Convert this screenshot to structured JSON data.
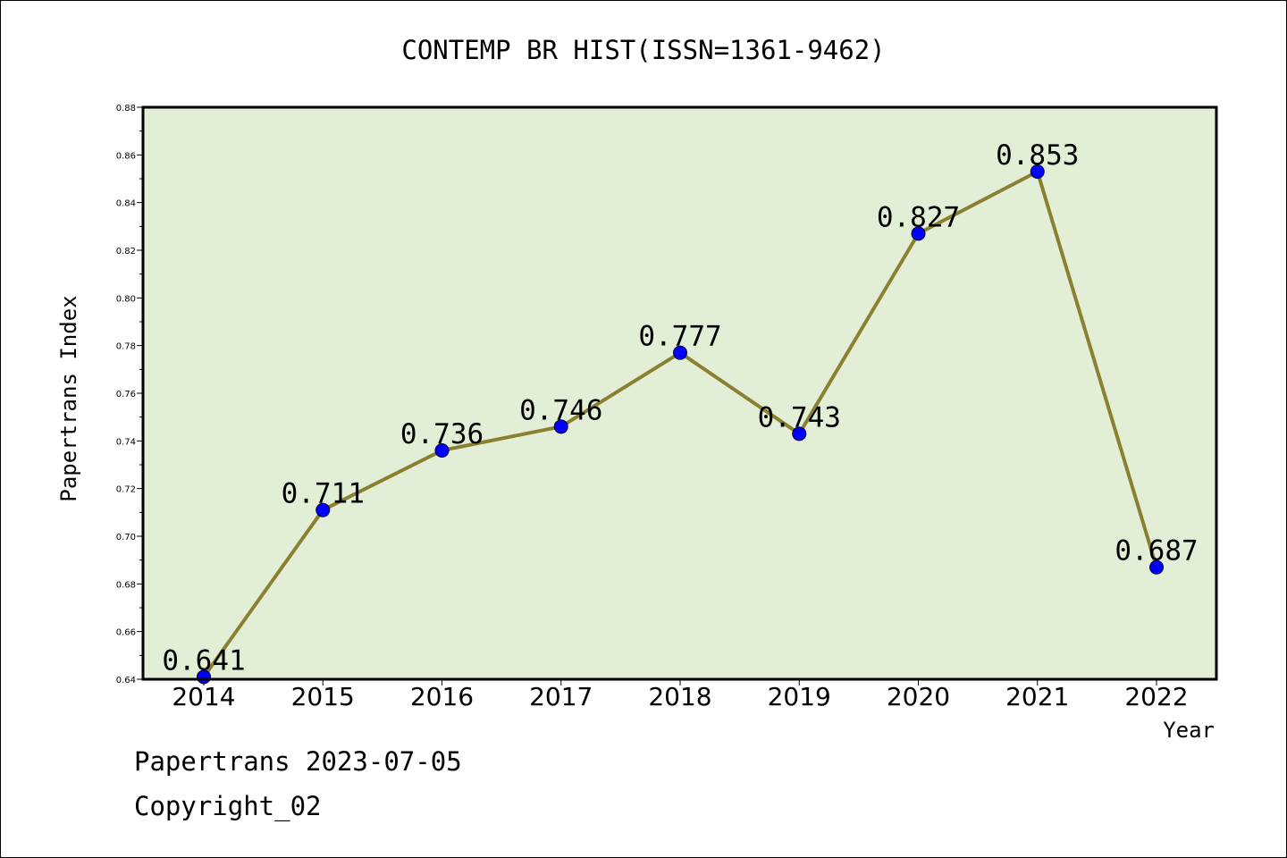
{
  "chart_data": {
    "type": "line",
    "title": "CONTEMP BR HIST(ISSN=1361-9462)",
    "xlabel": "Year",
    "ylabel": "Papertrans Index",
    "categories": [
      "2014",
      "2015",
      "2016",
      "2017",
      "2018",
      "2019",
      "2020",
      "2021",
      "2022"
    ],
    "series": [
      {
        "values": [
          0.641,
          0.711,
          0.736,
          0.746,
          0.777,
          0.743,
          0.827,
          0.853,
          0.687
        ],
        "labels": [
          "0.641",
          "0.711",
          "0.736",
          "0.746",
          "0.777",
          "0.743",
          "0.827",
          "0.853",
          "0.687"
        ]
      }
    ],
    "ylim": [
      0.64,
      0.88
    ],
    "yticks": [
      "0.64",
      "0.66",
      "0.68",
      "0.70",
      "0.72",
      "0.74",
      "0.76",
      "0.78",
      "0.80",
      "0.82",
      "0.84",
      "0.86",
      "0.88"
    ],
    "grid": false,
    "colors": {
      "plot_background": "#e2efd6",
      "line": "#8b8032",
      "marker": "#0000ff"
    }
  },
  "footer": {
    "date_line": "Papertrans 2023-07-05",
    "copyright_line": "Copyright_02"
  }
}
